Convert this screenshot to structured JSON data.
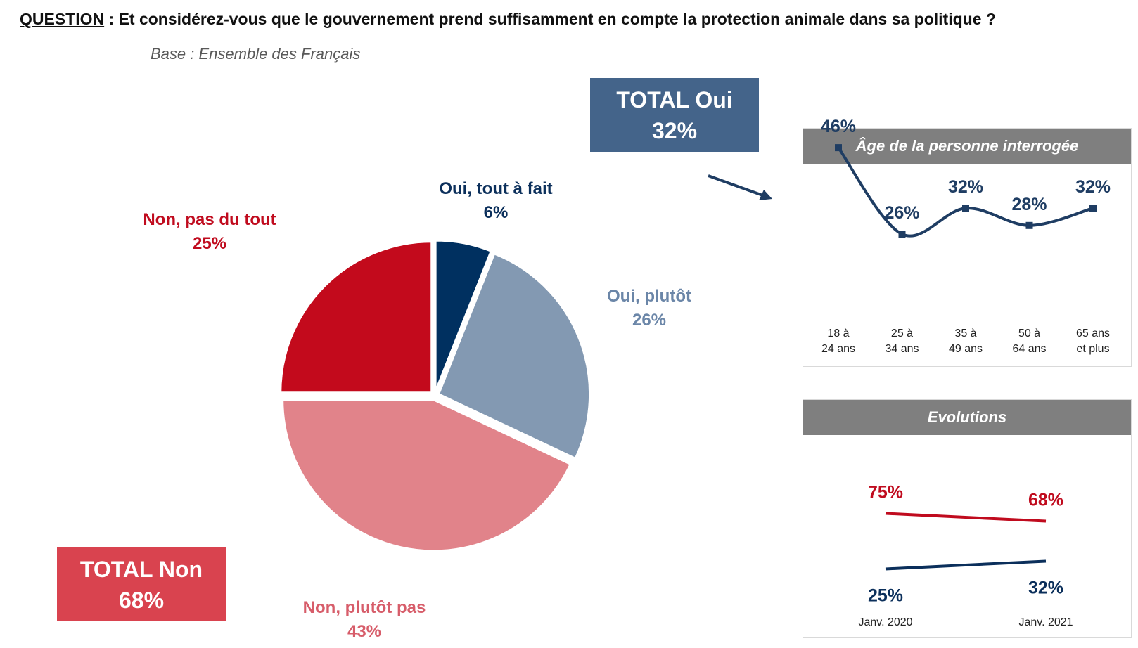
{
  "question": {
    "label": "QUESTION",
    "text": " : Et considérez-vous que le gouvernement prend suffisamment en compte la protection animale dans sa politique ?"
  },
  "base": "Base : Ensemble des Français",
  "totals": {
    "oui": {
      "line1": "TOTAL Oui",
      "line2": "32%",
      "color": "#44648a"
    },
    "non": {
      "line1": "TOTAL Non",
      "line2": "68%",
      "color": "#d9434f"
    }
  },
  "chart_data": [
    {
      "type": "pie",
      "slices": [
        {
          "label": "Oui, tout à fait",
          "value": 6,
          "display": "6%",
          "color": "#003060",
          "label_color": "#0b2f5b"
        },
        {
          "label": "Oui, plutôt",
          "value": 26,
          "display": "26%",
          "color": "#8399b2",
          "label_color": "#6b86a8"
        },
        {
          "label": "Non, plutôt pas",
          "value": 43,
          "display": "43%",
          "color": "#e1838a",
          "label_color": "#d75d6a"
        },
        {
          "label": "Non, pas du tout",
          "value": 25,
          "display": "25%",
          "color": "#c30a1c",
          "label_color": "#c00b1e"
        }
      ]
    },
    {
      "type": "line",
      "title": "Âge de la personne interrogée",
      "categories": [
        [
          "18 à",
          "24 ans"
        ],
        [
          "25 à",
          "34 ans"
        ],
        [
          "35 à",
          "49 ans"
        ],
        [
          "50 à",
          "64 ans"
        ],
        [
          "65 ans",
          "et plus"
        ]
      ],
      "series": [
        {
          "values": [
            46,
            26,
            32,
            28,
            32
          ],
          "labels": [
            "46%",
            "26%",
            "32%",
            "28%",
            "32%"
          ],
          "color": "#1f3d63"
        }
      ]
    },
    {
      "type": "line",
      "title": "Evolutions",
      "categories": [
        "Janv. 2020",
        "Janv. 2021"
      ],
      "series": [
        {
          "values": [
            75,
            68
          ],
          "labels": [
            "75%",
            "68%"
          ],
          "color": "#c00b1e"
        },
        {
          "values": [
            25,
            32
          ],
          "labels": [
            "25%",
            "32%"
          ],
          "color": "#0b2f5b"
        }
      ]
    }
  ]
}
